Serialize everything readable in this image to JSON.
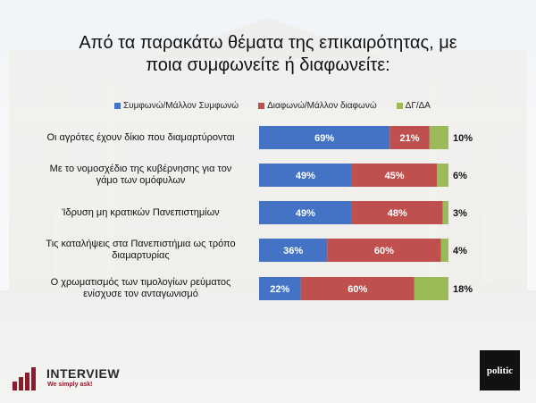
{
  "title_line1": "Από τα παρακάτω θέματα της επικαιρότητας, με",
  "title_line2": "ποια συμφωνείτε ή διαφωνείτε:",
  "colors": {
    "agree": "#4472c4",
    "disagree": "#c0504d",
    "dk": "#9bbb59"
  },
  "branding": {
    "left_name": "INTERVIEW",
    "left_tag": "We simply ask!",
    "right_name": "politic"
  },
  "chart_data": {
    "type": "bar",
    "orientation": "horizontal",
    "stacked": true,
    "xlim": [
      0,
      100
    ],
    "legend_position": "top",
    "categories": [
      [
        "Οι αγρότες έχουν δίκιο που διαμαρτύρονται"
      ],
      [
        "Με το νομοσχέδιο της κυβέρνησης για τον",
        "γάμο των ομόφυλων"
      ],
      [
        "Ίδρυση μη κρατικών Πανεπιστημίων"
      ],
      [
        "Τις καταλήψεις στα Πανεπιστήμια ως τρόπο",
        "διαμαρτυρίας"
      ],
      [
        "Ο χρωματισμός των τιμολογίων ρεύματος",
        "ενίσχυσε τον ανταγωνισμό"
      ]
    ],
    "series": [
      {
        "name": "Συμφωνώ/Μάλλον Συμφωνώ",
        "values": [
          69,
          49,
          49,
          36,
          22
        ],
        "labels": [
          "69%",
          "49%",
          "49%",
          "36%",
          "22%"
        ]
      },
      {
        "name": "Διαφωνώ/Μάλλον διαφωνώ",
        "values": [
          21,
          45,
          48,
          60,
          60
        ],
        "labels": [
          "21%",
          "45%",
          "48%",
          "60%",
          "60%"
        ]
      },
      {
        "name": "ΔΓ/ΔΑ",
        "values": [
          10,
          6,
          3,
          4,
          18
        ],
        "labels": [
          "10%",
          "6%",
          "3%",
          "4%",
          "18%"
        ]
      }
    ]
  }
}
